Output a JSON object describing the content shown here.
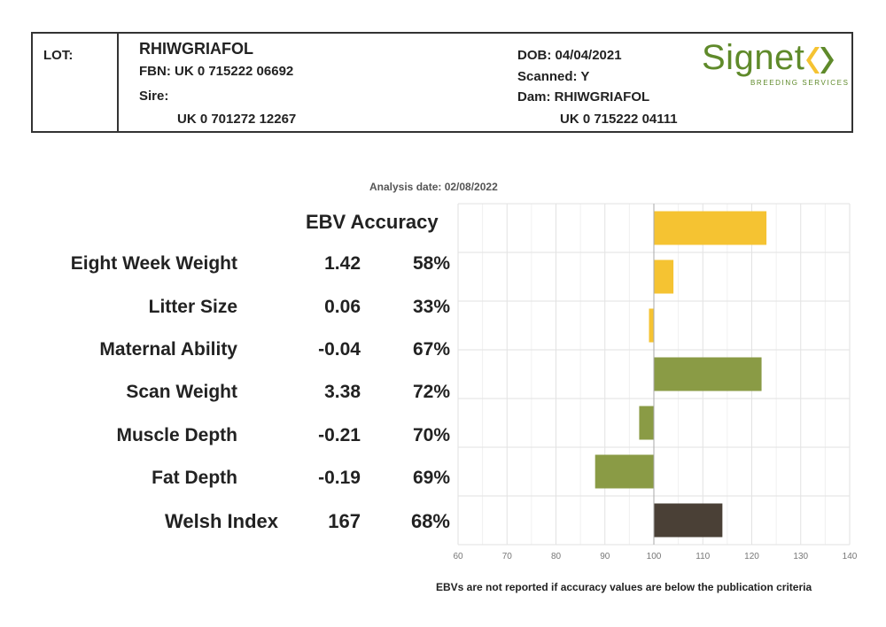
{
  "header": {
    "lot_label": "LOT:",
    "name": "RHIWGRIAFOL",
    "fbn": "FBN: UK 0 715222 06692",
    "sire_label": "Sire:",
    "sire_id": "UK 0 701272 12267",
    "dob": "DOB: 04/04/2021",
    "scanned": "Scanned: Y",
    "dam": "Dam: RHIWGRIAFOL",
    "dam_id": "UK 0 715222 04111"
  },
  "logo": {
    "word": "Signet",
    "sub": "BREEDING SERVICES",
    "color": "#5f8a2a",
    "icon": "signet-chevrons-icon"
  },
  "analysis_date": "Analysis date: 02/08/2022",
  "columns": {
    "ebv": "EBV",
    "accuracy": "Accuracy"
  },
  "traits": [
    {
      "name": "Eight Week Weight",
      "ebv": "1.42",
      "accuracy": "58%"
    },
    {
      "name": "Litter Size",
      "ebv": "0.06",
      "accuracy": "33%"
    },
    {
      "name": "Maternal Ability",
      "ebv": "-0.04",
      "accuracy": "67%"
    },
    {
      "name": "Scan Weight",
      "ebv": "3.38",
      "accuracy": "72%"
    },
    {
      "name": "Muscle Depth",
      "ebv": "-0.21",
      "accuracy": "70%"
    },
    {
      "name": "Fat Depth",
      "ebv": "-0.19",
      "accuracy": "69%"
    },
    {
      "name": "Welsh Index",
      "ebv": "167",
      "accuracy": "68%"
    }
  ],
  "footnote": "EBVs are not reported if accuracy values are below the publication criteria",
  "chart_data": {
    "type": "bar",
    "orientation": "horizontal",
    "baseline": 100,
    "xlim": [
      60,
      140
    ],
    "xticks": [
      60,
      70,
      80,
      90,
      100,
      110,
      120,
      130,
      140
    ],
    "grid": true,
    "categories": [
      "Eight Week Weight",
      "Litter Size",
      "Maternal Ability",
      "Scan Weight",
      "Muscle Depth",
      "Fat Depth",
      "Welsh Index"
    ],
    "values": [
      123,
      104,
      99,
      122,
      97,
      88,
      114
    ],
    "colors": [
      "#f5c332",
      "#f5c332",
      "#f5c332",
      "#8a9b45",
      "#8a9b45",
      "#8a9b45",
      "#4a4036"
    ]
  }
}
